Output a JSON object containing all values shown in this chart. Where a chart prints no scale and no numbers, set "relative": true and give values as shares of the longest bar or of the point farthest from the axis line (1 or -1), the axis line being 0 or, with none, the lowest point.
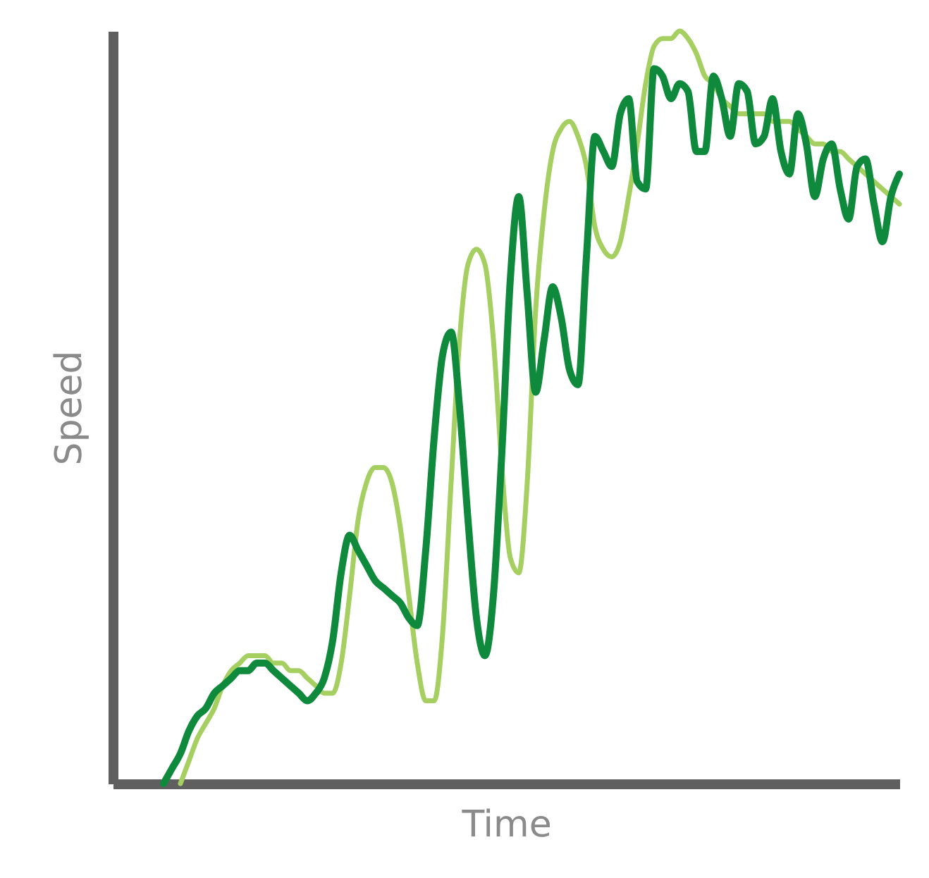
{
  "chart_data": {
    "type": "line",
    "relative": true,
    "xlabel": "Time",
    "ylabel": "Speed",
    "line_style": "solid",
    "categories": [
      null,
      null,
      null,
      null,
      null,
      null,
      null,
      null,
      null,
      null,
      null,
      null,
      null,
      null,
      null,
      null,
      null,
      null,
      null,
      null,
      null,
      null,
      null,
      null,
      null,
      null,
      null,
      null,
      null,
      null,
      null,
      null,
      null,
      null,
      null,
      null,
      null,
      null,
      null,
      null,
      null,
      null,
      null,
      null,
      null,
      null,
      null,
      null,
      null,
      null,
      null,
      null,
      null,
      null,
      null,
      null,
      null,
      null,
      null,
      null,
      null,
      null,
      null,
      null,
      null,
      null,
      null,
      null,
      null,
      null,
      null,
      null,
      null,
      null,
      null,
      null,
      null,
      null,
      null,
      null,
      null,
      null,
      null,
      null,
      null,
      null,
      null,
      null,
      null,
      null,
      null,
      null,
      null,
      null
    ],
    "series": [
      {
        "color": "#a6cf62",
        "values": [
          null,
          null,
          null,
          null,
          null,
          null,
          null,
          null,
          0,
          0.03,
          0.06,
          0.08,
          0.1,
          0.13,
          0.15,
          0.16,
          0.17,
          0.17,
          0.17,
          0.16,
          0.16,
          0.15,
          0.15,
          0.14,
          0.13,
          0.12,
          0.12,
          0.16,
          0.25,
          0.35,
          0.4,
          0.42,
          0.42,
          0.4,
          0.34,
          0.25,
          0.16,
          0.11,
          0.11,
          0.2,
          0.4,
          0.59,
          0.69,
          0.71,
          0.69,
          0.59,
          0.42,
          0.3,
          0.28,
          0.4,
          0.63,
          0.76,
          0.84,
          0.87,
          0.88,
          0.86,
          0.82,
          0.74,
          0.71,
          0.7,
          0.72,
          0.78,
          0.85,
          0.93,
          0.98,
          0.99,
          0.99,
          1,
          0.99,
          0.97,
          0.94,
          0.93,
          0.91,
          0.9,
          0.89,
          0.89,
          0.89,
          0.89,
          0.88,
          0.88,
          0.88,
          0.87,
          0.86,
          0.85,
          0.85,
          0.84,
          0.84,
          0.83,
          0.82,
          0.81,
          0.8,
          0.79,
          0.78,
          0.77
        ]
      },
      {
        "color": "#0f8a3c",
        "values": [
          null,
          null,
          null,
          null,
          null,
          null,
          0,
          0.02,
          0.04,
          0.07,
          0.09,
          0.1,
          0.12,
          0.13,
          0.14,
          0.15,
          0.15,
          0.16,
          0.16,
          0.15,
          0.14,
          0.13,
          0.12,
          0.11,
          0.12,
          0.14,
          0.19,
          0.28,
          0.33,
          0.31,
          0.29,
          0.27,
          0.26,
          0.25,
          0.24,
          0.22,
          0.21,
          0.31,
          0.46,
          0.57,
          0.6,
          0.5,
          0.35,
          0.22,
          0.17,
          0.25,
          0.44,
          0.67,
          0.78,
          0.65,
          0.52,
          0.59,
          0.66,
          0.62,
          0.55,
          0.53,
          0.7,
          0.86,
          0.84,
          0.82,
          0.89,
          0.91,
          0.8,
          0.79,
          0.95,
          0.94,
          0.91,
          0.93,
          0.92,
          0.84,
          0.84,
          0.94,
          0.91,
          0.86,
          0.93,
          0.92,
          0.85,
          0.86,
          0.91,
          0.84,
          0.81,
          0.89,
          0.85,
          0.78,
          0.83,
          0.85,
          0.79,
          0.75,
          0.82,
          0.83,
          0.77,
          0.72,
          0.78,
          0.81
        ]
      }
    ]
  }
}
